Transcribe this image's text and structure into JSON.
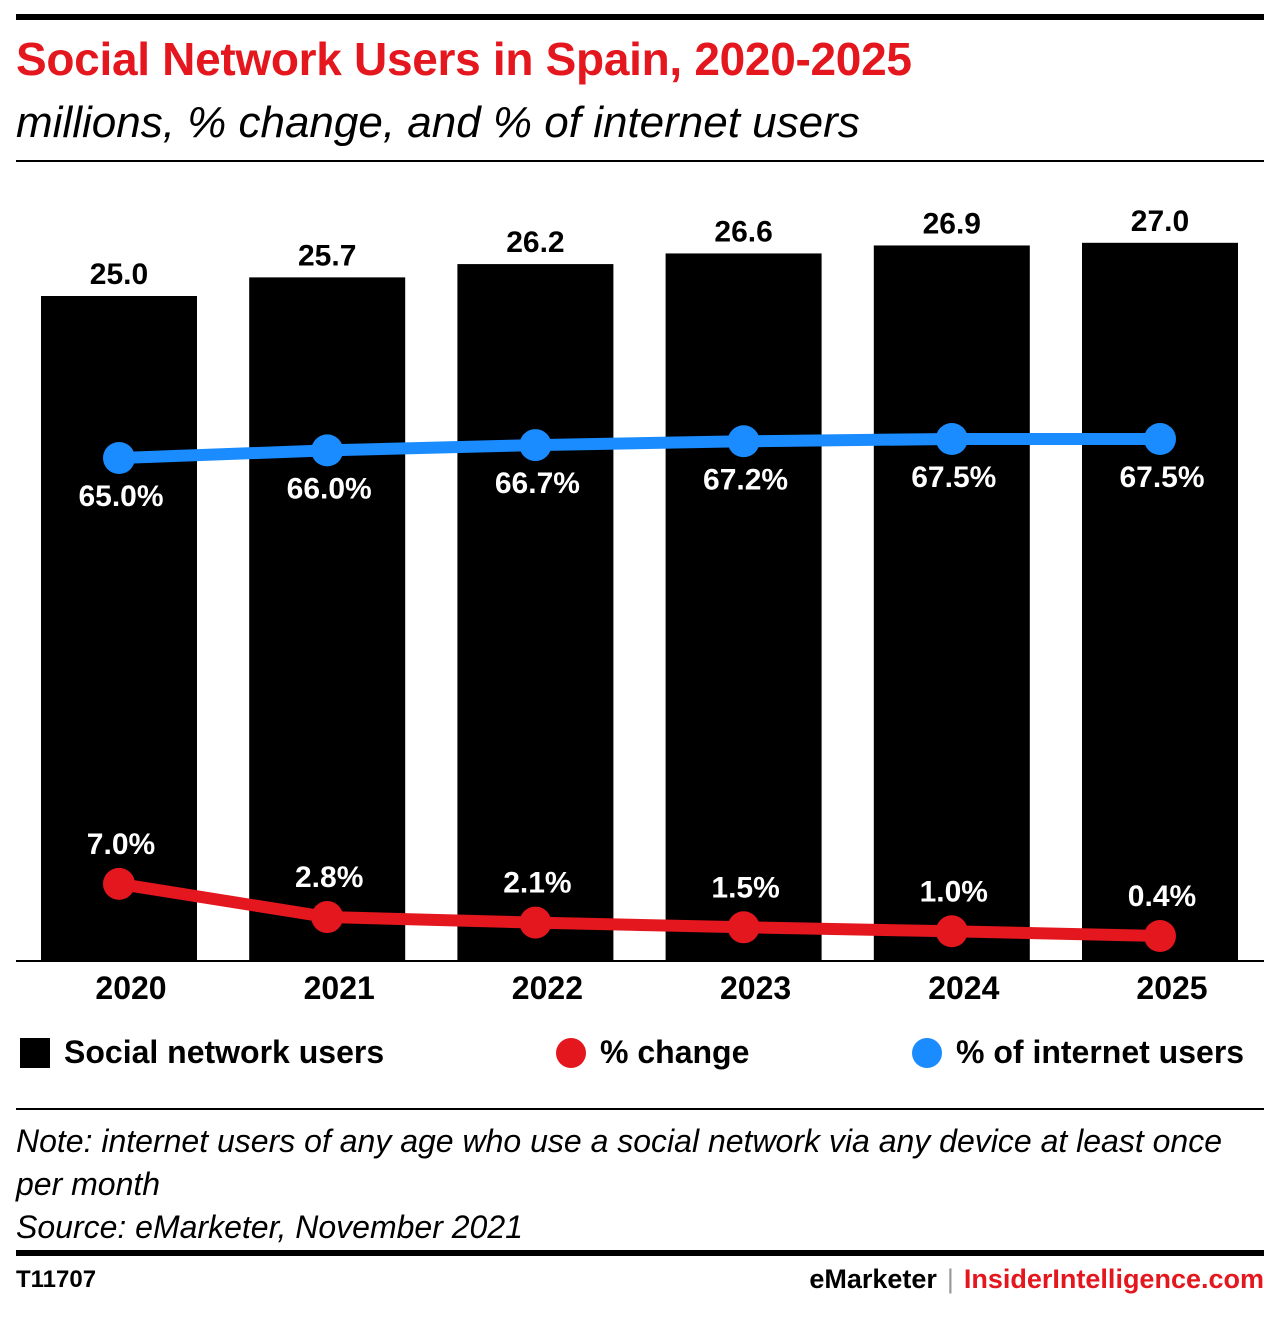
{
  "header": {
    "title": "Social Network Users in Spain, 2020-2025",
    "subtitle": "millions, % change, and % of internet users"
  },
  "colors": {
    "bars": "#000000",
    "pct_change": "#e4161e",
    "pct_internet": "#1a8cff",
    "accent": "#e4161e"
  },
  "chart_data": {
    "type": "bar",
    "categories": [
      "2020",
      "2021",
      "2022",
      "2023",
      "2024",
      "2025"
    ],
    "series": [
      {
        "name": "Social network users",
        "type": "bar",
        "values": [
          25.0,
          25.7,
          26.2,
          26.6,
          26.9,
          27.0
        ],
        "labels": [
          "25.0",
          "25.7",
          "26.2",
          "26.6",
          "26.9",
          "27.0"
        ]
      },
      {
        "name": "% change",
        "type": "line",
        "values": [
          7.0,
          2.8,
          2.1,
          1.5,
          1.0,
          0.4
        ],
        "labels": [
          "7.0%",
          "2.8%",
          "2.1%",
          "1.5%",
          "1.0%",
          "0.4%"
        ]
      },
      {
        "name": "% of internet users",
        "type": "line",
        "values": [
          65.0,
          66.0,
          66.7,
          67.2,
          67.5,
          67.5
        ],
        "labels": [
          "65.0%",
          "66.0%",
          "66.7%",
          "67.2%",
          "67.5%",
          "67.5%"
        ]
      }
    ],
    "legend_position": "bottom",
    "grid": false
  },
  "legend": {
    "bars": "Social network users",
    "pct_change": "% change",
    "pct_internet": "% of internet users"
  },
  "note": {
    "line1": "Note: internet users of any age who use a social network via any device at least once per month",
    "line2": "Source: eMarketer, November 2021"
  },
  "footer": {
    "id": "T11707",
    "brand": "eMarketer",
    "separator": "|",
    "site": "InsiderIntelligence.com"
  }
}
